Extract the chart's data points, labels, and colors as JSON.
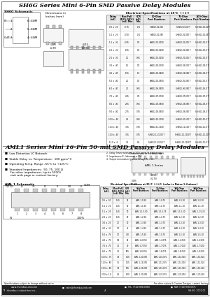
{
  "bg_color": "#ffffff",
  "title1": "SH6G Series Mini 6-Pin SMD Passive Delay Modules",
  "title2": "AML1 Series Mini 16-Pin 50-mil SMD Passive Delay Modules",
  "bullet1_col1": [
    "Low Distortion LC Network",
    "Stable Delay vs.\n  Temperature: 100 ppm/°C",
    "Operating Temperature\n  Range: -55°C to +125°C"
  ],
  "bullet1_col2": [
    "Standard Impedances:  50, 75, 100 Ω\n  For other impedances (up to 500Ω)\n  visit web page or contact factory.",
    "DIP version available:  SH6G2 Series"
  ],
  "bullet2": [
    "Low Distortion LC Network",
    "Stable Delay vs. Temperature:  100 ppm/°C",
    "Operating Temp. Range -55°C to +125°C",
    "Standard Impedances:  50, 75, 100 Ω\n  For other impedances (up to 500Ω)\n  visit web page or contact factory."
  ],
  "sh6g_table_headers": [
    "Delay\n(nS)",
    "Rise/Fall\n(10%-90%)\n(nS) Min",
    "CCR\n(nS)\nMin",
    "50-Ohm\nPart Numbers",
    "75-Ohm\nPart Numbers",
    "100-Ohm\nPart Numbers"
  ],
  "sh6g_rows": [
    [
      "0.5 ± .25",
      "-0.75",
      "-0.5",
      "SH6G2-01-005",
      "SH6G2-01-00 T",
      "SH-6G2-01-00 T"
    ],
    [
      "1.0 ± .25",
      "-0.50",
      "-0.5",
      "SH6G2-01-050",
      "SH6G2-01-050 T",
      "SH-6G2-01-05 T"
    ],
    [
      "1.5 ± .35",
      "-0.85",
      "0.5",
      "SH6G2-01-0150",
      "SH6G2-01-015 T",
      "SH-6G2-01-0 T"
    ],
    [
      "2.0 ± .35",
      "1.05",
      "0.5",
      "SH6G2-02-0200",
      "SH6G2-02-020 T",
      "SH-6G2-02-0 T"
    ],
    [
      "2.5 ± .35",
      "1.2",
      "0.65",
      "SH6G2-02-0250",
      "SH6G2-02-025 T",
      "SH-6G2-02-0 T"
    ],
    [
      "3.0 ± .40",
      "1.5",
      "0.5",
      "SH6G2-03-0300",
      "SH6G2-03-030 T",
      "SH-6G2-03-0 T"
    ],
    [
      "4.0 ± .40",
      "1.55",
      "1.0",
      "SH6G2-04-0400",
      "SH6G2-04-040 T",
      "SH-6G2-04-0 T"
    ],
    [
      "5.0 ± .40",
      "2.0",
      "0.5",
      "SH6G2-05-0500",
      "SH6G2-05-050 T",
      "SH-6G2-05-0 T"
    ],
    [
      "6.0 ± .40",
      "2.1",
      "0.65",
      "SH6G2-06-0600",
      "SH6G2-06-060 T",
      "SH-6G2-06-0 T"
    ],
    [
      "7.0 ± .40",
      "2.45",
      "0.5",
      "SH6G2-07-0700",
      "SH6G2-07-070 T",
      "SH-6G2-07-0 T"
    ],
    [
      "8.0 ± .40",
      "2.65",
      "0.65",
      "SH6G2-08-0800",
      "SH6G2-08-080 T",
      "SH-6G2-08-0 T"
    ],
    [
      "9.0 ± .40",
      "2.75",
      "0.75",
      "SH6G2-09-0900",
      "SH6G2-09-090 T",
      "SH-6G2-09-0 T"
    ],
    [
      "10.0 ± .40",
      "2.9",
      "0.65",
      "SH6G2-10-1000",
      "SH6G2-10-100 T",
      "SH-6G2-10-0 T"
    ],
    [
      "11.0 ± .40",
      "3.15",
      "0.75",
      "SH6G2-11-1100",
      "SH6G2-11-110 T",
      "SH-6G2-11-0 T"
    ],
    [
      "12.0 ± .40",
      "3.25",
      "0.75",
      "SH6G2-12-1100 T",
      "SH6G2-12-1100 T",
      "SH-6G2-12-00 T"
    ],
    [
      "13.5 ± .6",
      "3.5",
      "0.6",
      "SH6G2-13-1150 T",
      "SH6G2-13-1150 T",
      "SH-6G2-13-0 T"
    ]
  ],
  "notes_sh6g": [
    "1.  Rise/Falls are measured 10%-to-90% points.",
    "2.  Delay Times measured at 50% points of leading edge.",
    "3.  Impedances Zₑ (tolerance ± 5%)",
    "4.  Output termination (ground through Rₑ = Zₑ)"
  ],
  "aml1_table_headers": [
    "Delay\n(nS)",
    "Rise/Fall\n(10%-90%)\n(nS) Min",
    "CCR\n(nS)\nMin",
    "50-Ohm\nPart Numbers",
    "75-Ohm\nPart Numbers",
    "100-Ohm\nPart Numbers",
    "200-Ohm\nPart Numbers"
  ],
  "aml1_rows": [
    [
      "0.5 ± .50",
      "1.45",
      "25",
      "AML 1-0-50",
      "AML 1-0-75",
      "AML 1-0-10",
      "AML 1-0-20"
    ],
    [
      "1.0 ± .25",
      "1.45",
      "50",
      "AML 1-1-50",
      "AML 1-1-75",
      "AML 1-1-10",
      "AML 1-1-20"
    ],
    [
      "1.5 ± .25",
      "1.45",
      "50",
      "AML 1-1.5-50",
      "AML 1-1.5-75",
      "AML 1-1.5-10",
      "AML 1-1.5-20"
    ],
    [
      "2.0 ± .25",
      "1.45",
      "50",
      "AML 1-2-50",
      "AML 1-2-75",
      "AML 1-2-10",
      "AML 1-2-20"
    ],
    [
      "3.0 ± .25",
      "1.7",
      "50",
      "AML 1-3-50",
      "AML 1-3-75",
      "AML 1-3-10",
      "AML 1-3-20"
    ],
    [
      "4.0 ± .35",
      "1.7",
      "75",
      "AML 1-4-50",
      "AML 1-4-75",
      "AML 1-4-10",
      "AML 1-4-20"
    ],
    [
      "5.0 ± .75",
      "1.7",
      "350",
      "AML 1-5-50",
      "AML 1-5-75",
      "AML 1-5-10",
      "AML 1-5-20"
    ],
    [
      "4.0 ± .75",
      "1.8",
      "25",
      "AML 1-4-050",
      "AML 1-4-075",
      "AML 1-4-010",
      "AML 1-4-020"
    ],
    [
      "7.0 ± .75",
      "3.1",
      "30",
      "AML 1-7-050",
      "AML 1-7-075",
      "AML 1-7-010",
      "AML 1-7-020"
    ],
    [
      "8.0 ± .75",
      "3.1",
      "105",
      "AML 1-8-050",
      "AML 1-8-075",
      "AML 1-8-010",
      "AML 1-8-020"
    ],
    [
      "10.0 ± .75",
      "3.4",
      "1.50",
      "AML 1-10-050",
      "AML 1-10-075",
      "AML 1-10-010",
      "AML 1-10-020"
    ],
    [
      "12.0 ± .80",
      "3.6",
      "1.25",
      "AML 1-12-050",
      "AML 1-12-075",
      "AML 1-12-010",
      "AML 1-12-020"
    ],
    [
      "15.0 ± .80",
      "3.8",
      "175",
      "AML 1-15-050",
      "AML 1-15-075",
      "AML 1-15-010",
      "AML 1-15-020"
    ],
    [
      "20.0 ± 1.0",
      "4.1",
      "1.00",
      "AML 1-20-050",
      "AML 1-20-075",
      "AML 1-20-010",
      "AML 1-20-020"
    ]
  ],
  "footer_left": "Specifications subject to change without notice.",
  "footer_center": "For other values & Custom Designs, contact factory.",
  "footer_url": "www.rhombus-ind.com",
  "footer_email": "sales@rhombus-ind.com",
  "footer_tel": "TEL: (714) 898-0960",
  "footer_fax": "FAX: (714) 898-0971",
  "footer_company": "rhombus industries inc.",
  "footer_page": "4",
  "footer_part": "SH-6G  2001-01"
}
